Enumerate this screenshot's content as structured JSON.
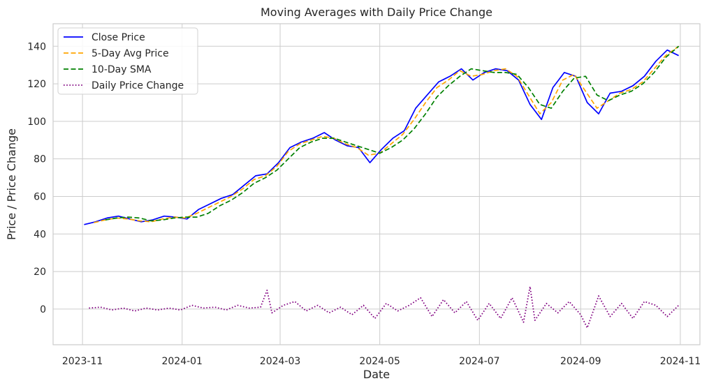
{
  "chart_data": {
    "type": "line",
    "title": "Moving Averages with Daily Price Change",
    "xlabel": "Date",
    "ylabel": "Price / Price Change",
    "xlim": [
      "2023-10-14",
      "2024-11-13"
    ],
    "ylim": [
      -19,
      152
    ],
    "grid": true,
    "legend_position": "top-left",
    "x_ticks": [
      {
        "date": "2023-11-01",
        "label": "2023-11"
      },
      {
        "date": "2024-01-01",
        "label": "2024-01"
      },
      {
        "date": "2024-03-01",
        "label": "2024-03"
      },
      {
        "date": "2024-05-01",
        "label": "2024-05"
      },
      {
        "date": "2024-07-01",
        "label": "2024-07"
      },
      {
        "date": "2024-09-01",
        "label": "2024-09"
      },
      {
        "date": "2024-11-01",
        "label": "2024-11"
      }
    ],
    "y_ticks": [
      0,
      20,
      40,
      60,
      80,
      100,
      120,
      140
    ],
    "series": [
      {
        "name": "Close Price",
        "color": "#0000ff",
        "style": "solid",
        "x": [
          "2023-11-02",
          "2023-11-09",
          "2023-11-16",
          "2023-11-23",
          "2023-11-30",
          "2023-12-07",
          "2023-12-14",
          "2023-12-21",
          "2023-12-28",
          "2024-01-04",
          "2024-01-11",
          "2024-01-18",
          "2024-01-25",
          "2024-02-01",
          "2024-02-08",
          "2024-02-15",
          "2024-02-22",
          "2024-02-29",
          "2024-03-07",
          "2024-03-14",
          "2024-03-21",
          "2024-03-28",
          "2024-04-04",
          "2024-04-11",
          "2024-04-18",
          "2024-04-25",
          "2024-05-02",
          "2024-05-09",
          "2024-05-16",
          "2024-05-23",
          "2024-05-30",
          "2024-06-06",
          "2024-06-13",
          "2024-06-20",
          "2024-06-27",
          "2024-07-04",
          "2024-07-11",
          "2024-07-18",
          "2024-07-25",
          "2024-08-01",
          "2024-08-08",
          "2024-08-15",
          "2024-08-22",
          "2024-08-29",
          "2024-09-05",
          "2024-09-12",
          "2024-09-19",
          "2024-09-26",
          "2024-10-03",
          "2024-10-10",
          "2024-10-17",
          "2024-10-24",
          "2024-10-31"
        ],
        "y": [
          45,
          46.5,
          48.5,
          49.5,
          48,
          46.5,
          47.5,
          49.5,
          49,
          48,
          53,
          56,
          59,
          61,
          66,
          71,
          72,
          78,
          86,
          89,
          91,
          94,
          90,
          87,
          86,
          78,
          85,
          91,
          95,
          107,
          114,
          121,
          124,
          128,
          122,
          126,
          128,
          127,
          122,
          109,
          101,
          118,
          126,
          124,
          110,
          104,
          115,
          116,
          119,
          124,
          132,
          138,
          135
        ]
      },
      {
        "name": "5-Day Avg Price",
        "color": "#ffa500",
        "style": "dashed",
        "x": [
          "2023-11-08",
          "2023-11-15",
          "2023-11-22",
          "2023-11-29",
          "2023-12-06",
          "2023-12-13",
          "2023-12-20",
          "2023-12-27",
          "2024-01-03",
          "2024-01-10",
          "2024-01-17",
          "2024-01-24",
          "2024-01-31",
          "2024-02-07",
          "2024-02-14",
          "2024-02-21",
          "2024-02-28",
          "2024-03-06",
          "2024-03-13",
          "2024-03-20",
          "2024-03-27",
          "2024-04-03",
          "2024-04-10",
          "2024-04-17",
          "2024-04-24",
          "2024-05-01",
          "2024-05-08",
          "2024-05-15",
          "2024-05-22",
          "2024-05-29",
          "2024-06-05",
          "2024-06-12",
          "2024-06-19",
          "2024-06-26",
          "2024-07-03",
          "2024-07-10",
          "2024-07-17",
          "2024-07-24",
          "2024-07-31",
          "2024-08-07",
          "2024-08-14",
          "2024-08-21",
          "2024-08-28",
          "2024-09-04",
          "2024-09-11",
          "2024-09-18",
          "2024-09-25",
          "2024-10-02",
          "2024-10-09",
          "2024-10-16",
          "2024-10-23",
          "2024-10-31"
        ],
        "y": [
          46,
          47.5,
          48.5,
          48,
          47,
          46.5,
          48,
          49,
          48.5,
          51,
          54,
          57,
          60,
          64,
          69,
          71,
          76,
          84,
          88,
          90,
          92,
          91,
          88,
          86,
          82,
          83,
          88,
          93,
          101,
          110,
          118,
          122,
          127,
          124,
          125,
          127,
          128,
          124,
          114,
          104,
          110,
          122,
          125,
          116,
          107,
          111,
          115,
          117,
          121,
          128,
          135,
          140
        ]
      },
      {
        "name": "10-Day SMA",
        "color": "#008000",
        "style": "dashed",
        "x": [
          "2023-11-15",
          "2023-11-22",
          "2023-11-29",
          "2023-12-06",
          "2023-12-13",
          "2023-12-20",
          "2023-12-27",
          "2024-01-03",
          "2024-01-10",
          "2024-01-17",
          "2024-01-24",
          "2024-01-31",
          "2024-02-07",
          "2024-02-14",
          "2024-02-21",
          "2024-02-28",
          "2024-03-06",
          "2024-03-13",
          "2024-03-20",
          "2024-03-27",
          "2024-04-03",
          "2024-04-10",
          "2024-04-17",
          "2024-04-24",
          "2024-05-01",
          "2024-05-08",
          "2024-05-15",
          "2024-05-22",
          "2024-05-29",
          "2024-06-05",
          "2024-06-12",
          "2024-06-19",
          "2024-06-26",
          "2024-07-03",
          "2024-07-10",
          "2024-07-17",
          "2024-07-24",
          "2024-07-31",
          "2024-08-07",
          "2024-08-14",
          "2024-08-21",
          "2024-08-28",
          "2024-09-04",
          "2024-09-11",
          "2024-09-18",
          "2024-09-25",
          "2024-10-02",
          "2024-10-09",
          "2024-10-16",
          "2024-10-23",
          "2024-10-31"
        ],
        "y": [
          47.5,
          48.5,
          49,
          48.5,
          47,
          47.5,
          48.5,
          49,
          49,
          51,
          55,
          58,
          62,
          67,
          70,
          74,
          80,
          86,
          89,
          91,
          91,
          89,
          87,
          85,
          83,
          86,
          90,
          96,
          104,
          113,
          119,
          124,
          128,
          127,
          126,
          126,
          125,
          118,
          109,
          107,
          116,
          123,
          124,
          114,
          111,
          114,
          116,
          120,
          126,
          134,
          140
        ]
      },
      {
        "name": "Daily Price Change",
        "color": "#800080",
        "style": "dotted",
        "x": [
          "2023-11-05",
          "2023-11-12",
          "2023-11-19",
          "2023-11-26",
          "2023-12-03",
          "2023-12-10",
          "2023-12-17",
          "2023-12-24",
          "2023-12-31",
          "2024-01-07",
          "2024-01-14",
          "2024-01-21",
          "2024-01-28",
          "2024-02-04",
          "2024-02-11",
          "2024-02-18",
          "2024-02-22",
          "2024-02-25",
          "2024-03-03",
          "2024-03-10",
          "2024-03-17",
          "2024-03-24",
          "2024-03-31",
          "2024-04-07",
          "2024-04-14",
          "2024-04-21",
          "2024-04-28",
          "2024-05-05",
          "2024-05-12",
          "2024-05-19",
          "2024-05-26",
          "2024-06-02",
          "2024-06-09",
          "2024-06-16",
          "2024-06-23",
          "2024-06-30",
          "2024-07-07",
          "2024-07-14",
          "2024-07-21",
          "2024-07-28",
          "2024-08-01",
          "2024-08-04",
          "2024-08-11",
          "2024-08-18",
          "2024-08-25",
          "2024-09-01",
          "2024-09-05",
          "2024-09-12",
          "2024-09-19",
          "2024-09-26",
          "2024-10-03",
          "2024-10-10",
          "2024-10-17",
          "2024-10-24",
          "2024-10-31"
        ],
        "y": [
          0.5,
          1,
          -0.5,
          0.5,
          -1,
          0.5,
          -0.5,
          0.5,
          -0.5,
          2,
          0.5,
          1,
          -0.5,
          2,
          0.5,
          1,
          10,
          -2,
          2,
          4,
          -1,
          2,
          -2,
          1,
          -3,
          2,
          -5,
          3,
          -1,
          2,
          6,
          -4,
          5,
          -2,
          4,
          -6,
          3,
          -5,
          6,
          -7,
          12,
          -6,
          3,
          -2,
          4,
          -3,
          -10,
          7,
          -4,
          3,
          -5,
          4,
          2,
          -4,
          2
        ]
      }
    ]
  }
}
